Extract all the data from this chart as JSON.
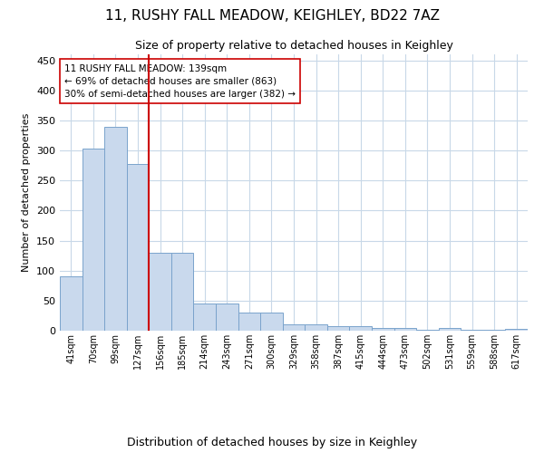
{
  "title": "11, RUSHY FALL MEADOW, KEIGHLEY, BD22 7AZ",
  "subtitle": "Size of property relative to detached houses in Keighley",
  "xlabel": "Distribution of detached houses by size in Keighley",
  "ylabel": "Number of detached properties",
  "categories": [
    "41sqm",
    "70sqm",
    "99sqm",
    "127sqm",
    "156sqm",
    "185sqm",
    "214sqm",
    "243sqm",
    "271sqm",
    "300sqm",
    "329sqm",
    "358sqm",
    "387sqm",
    "415sqm",
    "444sqm",
    "473sqm",
    "502sqm",
    "531sqm",
    "559sqm",
    "588sqm",
    "617sqm"
  ],
  "values": [
    90,
    303,
    340,
    277,
    130,
    130,
    46,
    46,
    30,
    30,
    10,
    10,
    8,
    8,
    4,
    4,
    1,
    4,
    1,
    1,
    3
  ],
  "bar_color": "#c9d9ed",
  "bar_edge_color": "#7aa3cc",
  "vline_x_index": 3,
  "vline_color": "#cc0000",
  "annotation_line1": "11 RUSHY FALL MEADOW: 139sqm",
  "annotation_line2": "← 69% of detached houses are smaller (863)",
  "annotation_line3": "30% of semi-detached houses are larger (382) →",
  "annotation_box_color": "#ffffff",
  "annotation_box_edge": "#cc0000",
  "ylim": [
    0,
    460
  ],
  "yticks": [
    0,
    50,
    100,
    150,
    200,
    250,
    300,
    350,
    400,
    450
  ],
  "bg_color": "#ffffff",
  "grid_color": "#c8d8e8"
}
